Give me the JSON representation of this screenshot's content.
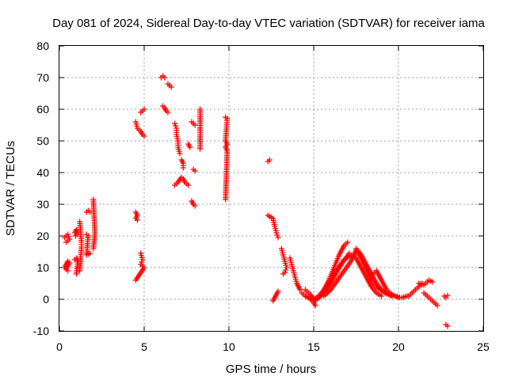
{
  "chart_data": {
    "type": "scatter",
    "title": "Day 081 of 2024, Sidereal Day-to-day VTEC variation (SDTVAR) for receiver iama",
    "xlabel": "GPS time / hours",
    "ylabel": "SDTVAR / TECUs",
    "xlim": [
      0,
      25
    ],
    "ylim": [
      -10,
      80
    ],
    "xticks": [
      0,
      5,
      10,
      15,
      20,
      25
    ],
    "yticks": [
      -10,
      0,
      10,
      20,
      30,
      40,
      50,
      60,
      70,
      80
    ],
    "grid": true,
    "marker": "+",
    "color": "#ff0000",
    "series": [
      {
        "name": "SDTVAR",
        "segments": [
          [
            [
              0.3,
              19.5
            ],
            [
              0.4,
              20
            ],
            [
              0.5,
              20.5
            ],
            [
              0.6,
              19
            ],
            [
              0.4,
              18
            ]
          ],
          [
            [
              0.3,
              10
            ],
            [
              0.4,
              11
            ],
            [
              0.5,
              12
            ],
            [
              0.6,
              11.5
            ],
            [
              0.4,
              9.5
            ],
            [
              0.5,
              9
            ]
          ],
          [
            [
              0.9,
              21
            ],
            [
              1.0,
              22
            ],
            [
              1.1,
              21
            ],
            [
              0.95,
              20
            ]
          ],
          [
            [
              0.9,
              12.5
            ],
            [
              1.0,
              13
            ],
            [
              1.1,
              12
            ],
            [
              1.0,
              8
            ]
          ],
          [
            [
              1.2,
              24.5
            ],
            [
              1.3,
              18
            ],
            [
              1.3,
              16.5
            ],
            [
              1.2,
              9
            ]
          ],
          [
            [
              1.6,
              27.5
            ],
            [
              1.7,
              28
            ],
            [
              1.8,
              27.5
            ]
          ],
          [
            [
              1.6,
              20.5
            ],
            [
              1.7,
              20
            ],
            [
              1.6,
              14
            ],
            [
              1.8,
              14.5
            ]
          ],
          [
            [
              2.0,
              31.5
            ],
            [
              2.1,
              20.5
            ],
            [
              2.0,
              16
            ]
          ],
          [
            [
              4.5,
              27.5
            ],
            [
              4.6,
              26.5
            ],
            [
              4.5,
              25.5
            ],
            [
              4.6,
              25
            ]
          ],
          [
            [
              4.5,
              56
            ],
            [
              4.6,
              54
            ],
            [
              4.8,
              53
            ],
            [
              4.9,
              52
            ],
            [
              5.0,
              51.5
            ]
          ],
          [
            [
              4.8,
              59
            ],
            [
              4.9,
              59.5
            ],
            [
              5.0,
              60
            ]
          ],
          [
            [
              4.8,
              14.5
            ],
            [
              4.9,
              12.5
            ],
            [
              4.8,
              11
            ],
            [
              5.0,
              10
            ],
            [
              4.5,
              6
            ]
          ],
          [
            [
              6.0,
              70
            ],
            [
              6.1,
              70.5
            ],
            [
              6.2,
              70
            ]
          ],
          [
            [
              6.4,
              68
            ],
            [
              6.5,
              67.5
            ],
            [
              6.6,
              67
            ]
          ],
          [
            [
              6.1,
              61
            ],
            [
              6.2,
              60.5
            ],
            [
              6.3,
              59.5
            ],
            [
              6.4,
              59
            ]
          ],
          [
            [
              6.8,
              55.5
            ],
            [
              6.9,
              54
            ],
            [
              6.9,
              52
            ],
            [
              7.0,
              50
            ],
            [
              7.0,
              48
            ],
            [
              7.1,
              46
            ]
          ],
          [
            [
              7.2,
              44
            ],
            [
              7.3,
              43
            ],
            [
              7.3,
              41.5
            ]
          ],
          [
            [
              6.8,
              36
            ],
            [
              7.0,
              37
            ],
            [
              7.2,
              38.5
            ],
            [
              7.3,
              38
            ],
            [
              7.4,
              37
            ],
            [
              7.5,
              36.5
            ],
            [
              7.6,
              36
            ]
          ],
          [
            [
              7.6,
              49
            ],
            [
              7.7,
              48
            ]
          ],
          [
            [
              7.8,
              56
            ],
            [
              7.9,
              55.5
            ],
            [
              8.0,
              55
            ]
          ],
          [
            [
              7.9,
              41
            ],
            [
              8.0,
              40.5
            ]
          ],
          [
            [
              7.8,
              31
            ],
            [
              7.9,
              30
            ],
            [
              8.0,
              29.5
            ]
          ],
          [
            [
              8.3,
              60
            ],
            [
              8.3,
              47.5
            ]
          ],
          [
            [
              9.8,
              57.5
            ],
            [
              9.9,
              57
            ],
            [
              9.8,
              50
            ],
            [
              9.9,
              49
            ],
            [
              9.8,
              48
            ],
            [
              9.9,
              47
            ],
            [
              9.8,
              31.5
            ]
          ],
          [
            [
              12.4,
              44
            ],
            [
              12.3,
              43.5
            ]
          ],
          [
            [
              12.3,
              26.5
            ],
            [
              12.6,
              25.5
            ],
            [
              12.7,
              23
            ],
            [
              12.8,
              21
            ],
            [
              12.9,
              19.5
            ]
          ],
          [
            [
              12.6,
              -0.5
            ],
            [
              12.7,
              0.5
            ],
            [
              12.8,
              1.5
            ],
            [
              12.9,
              2.5
            ]
          ],
          [
            [
              13.1,
              16
            ],
            [
              13.2,
              14
            ],
            [
              13.3,
              12
            ],
            [
              13.4,
              10
            ],
            [
              13.3,
              8.5
            ],
            [
              13.2,
              8
            ]
          ],
          [
            [
              13.6,
              13
            ],
            [
              13.7,
              11
            ],
            [
              13.8,
              9
            ],
            [
              13.9,
              7
            ],
            [
              14.0,
              5
            ],
            [
              14.1,
              4
            ],
            [
              14.2,
              3
            ]
          ],
          [
            [
              14.3,
              2
            ],
            [
              14.5,
              1
            ],
            [
              14.7,
              0.5
            ],
            [
              14.9,
              -0.5
            ],
            [
              15.0,
              -1
            ],
            [
              15.1,
              -2
            ]
          ],
          [
            [
              14.5,
              3
            ],
            [
              14.8,
              1.5
            ],
            [
              15.0,
              0
            ],
            [
              15.3,
              1
            ],
            [
              15.6,
              3
            ],
            [
              15.9,
              6
            ],
            [
              16.2,
              10
            ],
            [
              16.5,
              14
            ],
            [
              16.8,
              17
            ],
            [
              17.0,
              18
            ]
          ],
          [
            [
              14.6,
              1
            ],
            [
              15.0,
              -0.5
            ],
            [
              15.4,
              1
            ],
            [
              15.8,
              4
            ],
            [
              16.2,
              8
            ],
            [
              16.6,
              11
            ],
            [
              16.9,
              13
            ],
            [
              17.1,
              14.5
            ]
          ],
          [
            [
              15.2,
              0
            ],
            [
              15.6,
              2
            ],
            [
              16.0,
              5
            ],
            [
              16.4,
              9
            ],
            [
              16.8,
              12.5
            ],
            [
              17.2,
              14
            ],
            [
              17.5,
              13
            ],
            [
              17.8,
              10
            ],
            [
              18.1,
              7
            ],
            [
              18.4,
              4
            ],
            [
              18.7,
              2
            ],
            [
              19.0,
              1
            ]
          ],
          [
            [
              15.6,
              1
            ],
            [
              16.0,
              3
            ],
            [
              16.4,
              6
            ],
            [
              16.8,
              9
            ],
            [
              17.2,
              12
            ],
            [
              17.5,
              15.5
            ],
            [
              17.8,
              13
            ],
            [
              18.1,
              9.5
            ],
            [
              18.4,
              6
            ],
            [
              18.8,
              3.5
            ],
            [
              19.2,
              2
            ],
            [
              19.6,
              1
            ]
          ],
          [
            [
              17.5,
              16
            ],
            [
              17.8,
              14
            ],
            [
              18.1,
              11
            ],
            [
              18.4,
              8
            ],
            [
              18.7,
              5
            ],
            [
              19.0,
              3
            ],
            [
              19.4,
              1.5
            ],
            [
              19.8,
              1
            ],
            [
              20.2,
              0.5
            ],
            [
              20.5,
              1
            ]
          ],
          [
            [
              18.4,
              7.5
            ],
            [
              18.7,
              9
            ],
            [
              19.0,
              6
            ],
            [
              19.3,
              3
            ],
            [
              19.6,
              1.5
            ],
            [
              20.0,
              0.5
            ]
          ],
          [
            [
              20.6,
              1
            ],
            [
              20.8,
              2
            ],
            [
              21.0,
              3
            ],
            [
              21.2,
              4
            ],
            [
              21.4,
              5
            ]
          ],
          [
            [
              21.2,
              5
            ],
            [
              21.5,
              4.5
            ],
            [
              21.8,
              6
            ],
            [
              22.0,
              5.5
            ]
          ],
          [
            [
              21.5,
              2
            ],
            [
              21.7,
              1
            ],
            [
              21.9,
              0
            ],
            [
              22.1,
              -1
            ],
            [
              22.3,
              -2
            ]
          ],
          [
            [
              22.7,
              1
            ],
            [
              22.8,
              0.5
            ],
            [
              22.9,
              1.2
            ]
          ],
          [
            [
              22.8,
              -8
            ],
            [
              22.9,
              -8.5
            ]
          ]
        ]
      }
    ]
  }
}
